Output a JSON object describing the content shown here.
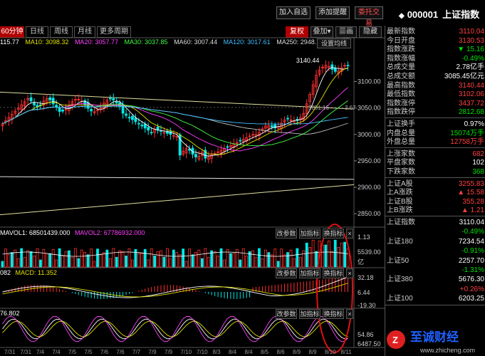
{
  "toolbar": {
    "add_watch": "加入自选",
    "add_alert": "添加提醒",
    "entrust": "委托交易",
    "stock_code": "000001",
    "stock_name": "上证指数"
  },
  "tabs": {
    "items": [
      "60分钟",
      "日线",
      "周线",
      "月线",
      "更多周期"
    ],
    "active": "60分钟",
    "fq": "复权",
    "overlay": "叠加",
    "draw": "画线",
    "hide": "隐藏"
  },
  "ma_legend": {
    "ma5": "115.77",
    "ma10": "MA10: 3098.32",
    "ma20": "MA20: 3057.77",
    "ma30": "MA30: 3037.85",
    "ma60": "MA60: 3007.44",
    "ma120": "MA120: 3017.61",
    "ma250": "MA250: 2948.",
    "setting": "设置均线"
  },
  "price_axis": [
    "3100.00",
    "3050.00",
    "3000.00",
    "2950.00",
    "2900.00",
    "2850.00"
  ],
  "annotations": {
    "high": "3140.44",
    "level": "3051.16",
    "level_right": "3.67"
  },
  "volume_panel": {
    "legend1": "MAVOL1: 68501439.000",
    "legend2": "MAVOL2: 67786932.000",
    "btn_param": "改参数",
    "btn_indicator": "加指标",
    "btn_switch": "换指标",
    "axis": [
      "1.13",
      "5539.00",
      "亿"
    ]
  },
  "macd_panel": {
    "legend1": "082",
    "legend2": "MACD: 11.352",
    "btn_param": "改参数",
    "btn_indicator": "加指标",
    "btn_switch": "换指标",
    "axis": [
      "32.18",
      "6.44",
      "-19.30"
    ]
  },
  "third_panel": {
    "legend1": "76.802",
    "btn_param": "改参数",
    "btn_indicator": "加指标",
    "btn_switch": "换指标",
    "axis": [
      "54.86",
      "6487.50"
    ]
  },
  "x_dates": [
    "7/31",
    "7/31",
    "7/4",
    "7/4",
    "7/5",
    "7/5",
    "7/6",
    "7/6",
    "7/7",
    "7/9",
    "7/9",
    "7/10",
    "7/10",
    "8/3",
    "8/4",
    "8/4",
    "8/5",
    "8/6",
    "8/9",
    "8/9",
    "8/10",
    "8/11"
  ],
  "quote": {
    "rows1": [
      {
        "k": "最新指数",
        "v": "3110.04",
        "c": "up"
      },
      {
        "k": "今日开盘",
        "v": "3130.53",
        "c": "up"
      },
      {
        "k": "指数涨跌",
        "v": "▼ 15.16",
        "c": "dn"
      },
      {
        "k": "指数涨幅",
        "v": "-0.49%",
        "c": "dn"
      },
      {
        "k": "总成交量",
        "v": "2.78亿手",
        "c": "wh"
      },
      {
        "k": "总成交额",
        "v": "3085.45亿元",
        "c": "wh"
      },
      {
        "k": "最高指数",
        "v": "3140.44",
        "c": "up"
      },
      {
        "k": "最低指数",
        "v": "3102.06",
        "c": "up"
      },
      {
        "k": "指数涨停",
        "v": "3437.72",
        "c": "up"
      },
      {
        "k": "指数跌停",
        "v": "2812.68",
        "c": "dn"
      }
    ],
    "rows2": [
      {
        "k": "上证换手",
        "v": "0.97%",
        "c": "wh"
      },
      {
        "k": "内盘总量",
        "v": "15074万手",
        "c": "dn"
      },
      {
        "k": "外盘总量",
        "v": "12758万手",
        "c": "up"
      }
    ],
    "rows3": [
      {
        "k": "上涨家数",
        "v": "682",
        "c": "up"
      },
      {
        "k": "平盘家数",
        "v": "102",
        "c": "wh"
      },
      {
        "k": "下跌家数",
        "v": "368",
        "c": "dn"
      }
    ],
    "rows4": [
      {
        "k": "上证A股",
        "v": "3255.83",
        "c": "up"
      },
      {
        "k": "上A涨跌",
        "v": "▲ 15.58",
        "c": "up"
      },
      {
        "k": "上证B股",
        "v": "355.28",
        "c": "up"
      },
      {
        "k": "上B涨跌",
        "v": "▲ 1.21",
        "c": "up"
      }
    ],
    "rows5": [
      {
        "k": "上证指数",
        "v": "3110.04",
        "c": "wh"
      },
      {
        "k": "",
        "v": "-0.49%",
        "c": "dn"
      },
      {
        "k": "上证180",
        "v": "7234.54",
        "c": "wh"
      },
      {
        "k": "",
        "v": "-0.91%",
        "c": "dn"
      },
      {
        "k": "上证50",
        "v": "2257.70",
        "c": "wh"
      },
      {
        "k": "",
        "v": "-1.31%",
        "c": "dn"
      },
      {
        "k": "上证380",
        "v": "5676.30",
        "c": "wh"
      },
      {
        "k": "",
        "v": "+0.26%",
        "c": "up"
      },
      {
        "k": "上证100",
        "v": "6203.25",
        "c": "wh"
      }
    ]
  },
  "watermark": {
    "text": "至诚财经",
    "url": "www.zhicheng.com"
  }
}
